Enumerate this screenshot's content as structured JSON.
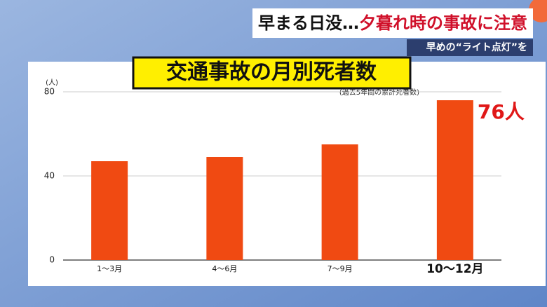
{
  "banner": {
    "headline_lead": "早まる日没…",
    "headline_main": "夕暮れ時の事故に注意",
    "subheadline": "早めの“ライト点灯”を"
  },
  "chart_data": {
    "type": "bar",
    "title": "交通事故の月別死者数",
    "subtitle": "(過去5年間の累計死者数)",
    "y_label": "(人)",
    "categories": [
      "1〜3月",
      "4〜6月",
      "7〜9月",
      "10〜12月"
    ],
    "values": [
      47,
      49,
      55,
      76
    ],
    "value_labels": [
      null,
      null,
      null,
      "76人"
    ],
    "color": "#f04a12",
    "ylim": [
      0,
      80
    ],
    "yticks": [
      0,
      40,
      80
    ],
    "grid": true
  }
}
